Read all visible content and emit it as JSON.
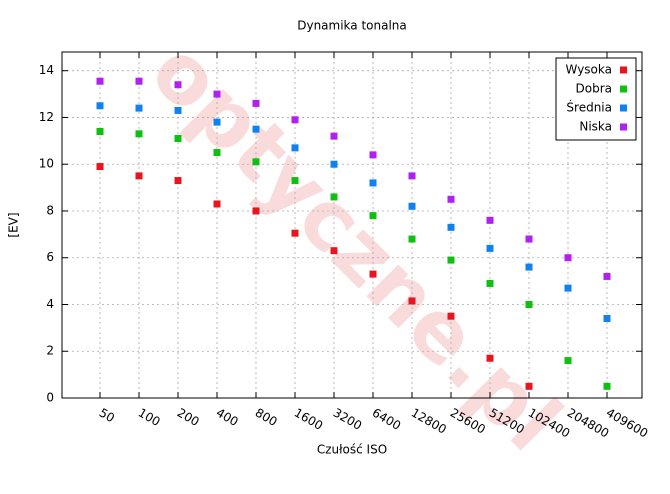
{
  "chart_data": {
    "type": "scatter",
    "title": "Dynamika tonalna",
    "xlabel": "Czułość ISO",
    "ylabel": "[EV]",
    "watermark": "optyczne.pl",
    "categories": [
      "50",
      "100",
      "200",
      "400",
      "800",
      "1600",
      "3200",
      "6400",
      "12800",
      "25600",
      "51200",
      "102400",
      "204800",
      "409600"
    ],
    "series": [
      {
        "name": "Wysoka",
        "color": "#e8141e",
        "values": [
          9.9,
          9.5,
          9.3,
          8.3,
          8.0,
          7.05,
          6.3,
          5.3,
          4.15,
          3.5,
          1.7,
          0.5,
          null,
          null
        ]
      },
      {
        "name": "Dobra",
        "color": "#10c010",
        "values": [
          11.4,
          11.3,
          11.1,
          10.5,
          10.1,
          9.3,
          8.6,
          7.8,
          6.8,
          5.9,
          4.9,
          4.0,
          1.6,
          0.5
        ]
      },
      {
        "name": "Średnia",
        "color": "#1082f0",
        "values": [
          12.5,
          12.4,
          12.3,
          11.8,
          11.5,
          10.7,
          10.0,
          9.2,
          8.2,
          7.3,
          6.4,
          5.6,
          4.7,
          3.4
        ]
      },
      {
        "name": "Niska",
        "color": "#b020f0",
        "values": [
          13.55,
          13.55,
          13.4,
          13.0,
          12.6,
          11.9,
          11.2,
          10.4,
          9.5,
          8.5,
          7.6,
          6.8,
          6.0,
          5.2
        ]
      }
    ],
    "ylim": [
      0,
      14.8
    ],
    "yticks": [
      0,
      2,
      4,
      6,
      8,
      10,
      12,
      14
    ],
    "grid": true,
    "legend": "upper right"
  }
}
